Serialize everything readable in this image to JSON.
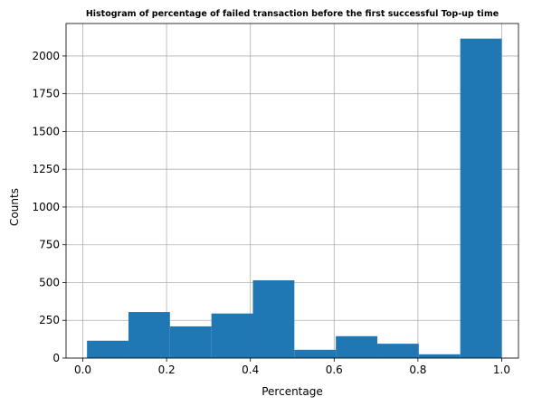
{
  "chart_data": {
    "type": "bar",
    "title": "Histogram of percentage of failed transaction before the first successful Top-up time",
    "xlabel": "Percentage",
    "ylabel": "Counts",
    "xlim": [
      -0.04,
      1.04
    ],
    "ylim": [
      0,
      2215
    ],
    "xticks": [
      0.0,
      0.2,
      0.4,
      0.6,
      0.8,
      1.0
    ],
    "xtick_labels": [
      "0.0",
      "0.2",
      "0.4",
      "0.6",
      "0.8",
      "1.0"
    ],
    "yticks": [
      0,
      250,
      500,
      750,
      1000,
      1250,
      1500,
      1750,
      2000
    ],
    "ytick_labels": [
      "0",
      "250",
      "500",
      "750",
      "1000",
      "1250",
      "1500",
      "1750",
      "2000"
    ],
    "grid": true,
    "bar_color": "#1f77b4",
    "bins": [
      {
        "start": 0.01,
        "end": 0.109,
        "count": 115
      },
      {
        "start": 0.109,
        "end": 0.208,
        "count": 305
      },
      {
        "start": 0.208,
        "end": 0.307,
        "count": 210
      },
      {
        "start": 0.307,
        "end": 0.406,
        "count": 295
      },
      {
        "start": 0.406,
        "end": 0.505,
        "count": 515
      },
      {
        "start": 0.505,
        "end": 0.604,
        "count": 55
      },
      {
        "start": 0.604,
        "end": 0.703,
        "count": 145
      },
      {
        "start": 0.703,
        "end": 0.802,
        "count": 95
      },
      {
        "start": 0.802,
        "end": 0.901,
        "count": 25
      },
      {
        "start": 0.901,
        "end": 1.0,
        "count": 2115
      }
    ]
  }
}
